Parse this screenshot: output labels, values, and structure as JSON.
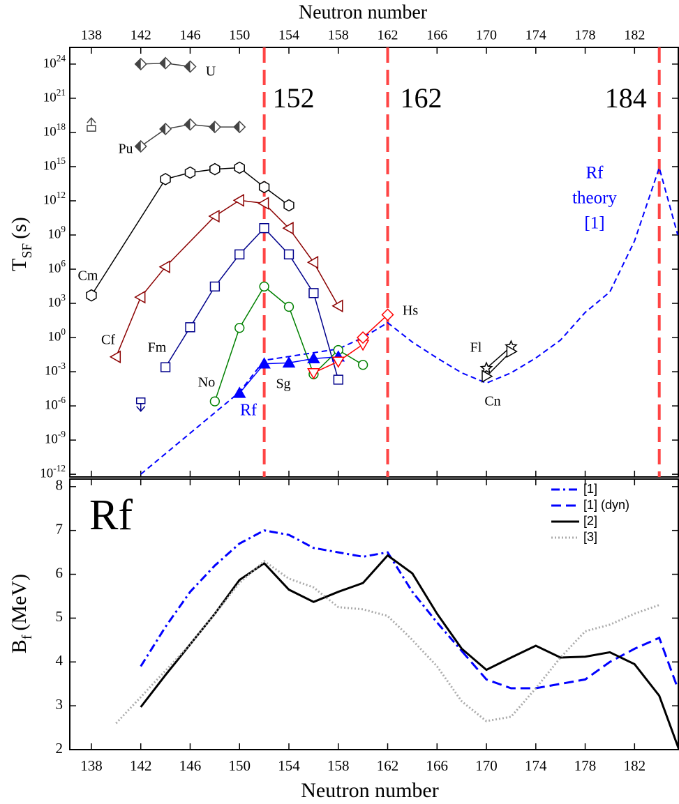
{
  "chart_data": [
    {
      "type": "scatter-line",
      "x_label": "Neutron number",
      "y_label": {
        "main": "T",
        "sub": "SF",
        "unit": "(s)"
      },
      "log_y": true,
      "xlim": [
        136.25,
        185.6
      ],
      "ylim": [
        5.8e-13,
        2.9e+25
      ],
      "xticks": [
        138,
        142,
        146,
        150,
        154,
        158,
        162,
        166,
        170,
        174,
        178,
        182
      ],
      "yticks": [
        {
          "value": 1e-12,
          "label": "10^-12"
        },
        {
          "value": 1e-09,
          "label": "10^-9"
        },
        {
          "value": 1e-06,
          "label": "10^-6"
        },
        {
          "value": 0.001,
          "label": "10^-3"
        },
        {
          "value": 1,
          "label": "10^0"
        },
        {
          "value": 1000,
          "label": "10^3"
        },
        {
          "value": 1000000.0,
          "label": "10^6"
        },
        {
          "value": 1000000000.0,
          "label": "10^9"
        },
        {
          "value": 1000000000000.0,
          "label": "10^12"
        },
        {
          "value": 1000000000000000.0,
          "label": "10^15"
        },
        {
          "value": 1e+18,
          "label": "10^18"
        },
        {
          "value": 1e+21,
          "label": "10^21"
        },
        {
          "value": 1e+24,
          "label": "10^24"
        }
      ],
      "magic_numbers": [
        152,
        162,
        184
      ],
      "magic_color": "#ff4444",
      "series": [
        {
          "name": "U",
          "color": "#444444",
          "marker": "diamond",
          "filled": "half",
          "x": [
            142,
            144,
            146
          ],
          "values": [
            1e+24,
            1.2e+24,
            6e+23
          ]
        },
        {
          "name": "Pu",
          "color": "#444444",
          "marker": "diamond",
          "filled": "half",
          "x": [
            142,
            144,
            146,
            148,
            150
          ],
          "values": [
            6e+16,
            2e+18,
            5e+18,
            3e+18,
            3e+18
          ]
        },
        {
          "name": "Cm",
          "color": "#000000",
          "marker": "hexagon",
          "filled": "open",
          "x": [
            138,
            144,
            146,
            148,
            150,
            152,
            154
          ],
          "values": [
            5000,
            80000000000000.0,
            300000000000000.0,
            600000000000000.0,
            800000000000000.0,
            16000000000000.0,
            400000000000.0
          ]
        },
        {
          "name": "Cf",
          "color": "#8b0000",
          "marker": "triangle-left",
          "filled": "open",
          "x": [
            140,
            142,
            144,
            148,
            150,
            152,
            154,
            156,
            158
          ],
          "values": [
            0.02,
            3500,
            1600000.0,
            45000000000.0,
            1100000000000.0,
            600000000000.0,
            4000000000.0,
            4000000.0,
            600
          ]
        },
        {
          "name": "Fm",
          "color": "#00008b",
          "marker": "square",
          "filled": "open",
          "x": [
            144,
            146,
            148,
            150,
            152,
            154,
            156,
            158
          ],
          "values": [
            0.0025,
            8,
            30000,
            20000000.0,
            4000000000.0,
            20000000.0,
            8000,
            0.0002
          ]
        },
        {
          "name": "No",
          "color": "#008000",
          "marker": "circle",
          "filled": "open",
          "x": [
            148,
            150,
            152,
            154,
            156,
            158,
            160
          ],
          "values": [
            2.5e-06,
            7,
            30000,
            500,
            0.0006,
            0.08,
            0.004
          ]
        },
        {
          "name": "Rf",
          "color": "#0000ff",
          "marker": "triangle-up",
          "filled": "full",
          "x": [
            150,
            152,
            154,
            156,
            158
          ],
          "values": [
            1.3e-05,
            0.005,
            0.006,
            0.014,
            0.02
          ]
        },
        {
          "name": "Sg",
          "color": "#ff0000",
          "marker": "triangle-down",
          "filled": "open",
          "x": [
            156,
            158,
            160
          ],
          "values": [
            0.0008,
            0.008,
            0.25
          ]
        },
        {
          "name": "Hs",
          "color": "#ff0000",
          "marker": "diamond",
          "filled": "open",
          "x": [
            160,
            162
          ],
          "values": [
            1,
            100
          ]
        },
        {
          "name": "Fl",
          "color": "#000000",
          "marker": "star",
          "filled": "open",
          "x": [
            170,
            172
          ],
          "values": [
            0.002,
            0.16
          ]
        },
        {
          "name": "Cn",
          "color": "#000000",
          "marker": "triangle-right",
          "filled": "open",
          "x": [
            170,
            172
          ],
          "values": [
            0.0004,
            0.06
          ]
        }
      ],
      "limits": [
        {
          "x": 138,
          "value": 4e+18,
          "direction": "up",
          "color": "#444444"
        },
        {
          "x": 142,
          "value": 1.6e-06,
          "direction": "down",
          "color": "#00008b"
        }
      ],
      "theory": {
        "label": [
          "Rf",
          "theory",
          "[1]"
        ],
        "color": "#0000ff",
        "x": [
          142,
          150,
          152,
          158,
          160,
          162,
          164,
          166,
          168,
          170,
          172,
          174,
          176,
          178,
          180,
          182,
          184,
          185.5
        ],
        "values": [
          1e-12,
          1.6e-05,
          0.01,
          0.1,
          1,
          20,
          0.4,
          0.016,
          0.0008,
          0.0001,
          0.0008,
          0.016,
          0.6,
          160,
          10000,
          300000000.0,
          800000000000000.0,
          1000000000.0
        ]
      }
    },
    {
      "type": "line",
      "x_label": "Neutron number",
      "y_label": {
        "main": "B",
        "sub": "f",
        "unit": "(MeV)"
      },
      "panel_label": "Rf",
      "legend": "upper right",
      "xlim": [
        136.25,
        185.6
      ],
      "ylim": [
        2,
        8.22
      ],
      "xticks": [
        138,
        142,
        146,
        150,
        154,
        158,
        162,
        166,
        170,
        174,
        178,
        182
      ],
      "yticks": [
        2,
        3,
        4,
        5,
        6,
        7,
        8
      ],
      "series": [
        {
          "name": "[1]",
          "color": "#0000ff",
          "linestyle": "dashdot",
          "x": [
            142,
            144,
            146,
            148,
            150,
            152,
            154,
            156,
            158,
            160,
            162,
            164,
            166,
            168
          ],
          "values": [
            3.9,
            4.8,
            5.6,
            6.2,
            6.7,
            7.0,
            6.9,
            6.6,
            6.5,
            6.4,
            6.5,
            5.6,
            4.9,
            4.25
          ]
        },
        {
          "name": "[1] (dyn)",
          "color": "#0000ff",
          "linestyle": "dashed",
          "x": [
            168,
            170,
            172,
            174,
            176,
            178,
            180,
            182,
            184,
            185.5
          ],
          "values": [
            4.25,
            3.6,
            3.4,
            3.4,
            3.5,
            3.6,
            4.0,
            4.3,
            4.55,
            3.4
          ]
        },
        {
          "name": "[2]",
          "color": "#000000",
          "linestyle": "solid",
          "x": [
            142,
            144,
            146,
            148,
            150,
            152,
            154,
            156,
            158,
            160,
            162,
            164,
            166,
            168,
            170,
            172,
            174,
            176,
            178,
            180,
            182,
            184,
            185.6
          ],
          "values": [
            2.97,
            3.7,
            4.4,
            5.1,
            5.87,
            6.25,
            5.65,
            5.37,
            5.6,
            5.8,
            6.43,
            6.02,
            5.1,
            4.3,
            3.82,
            4.1,
            4.37,
            4.1,
            4.12,
            4.22,
            3.95,
            3.23,
            2.0
          ]
        },
        {
          "name": "[3]",
          "color": "#aaaaaa",
          "linestyle": "dotted",
          "x": [
            140,
            142,
            146,
            150,
            152,
            154,
            156,
            158,
            160,
            162,
            164,
            166,
            168,
            170,
            172,
            174,
            176,
            178,
            180,
            182,
            184
          ],
          "values": [
            2.6,
            3.2,
            4.4,
            5.8,
            6.3,
            5.9,
            5.7,
            5.25,
            5.2,
            5.05,
            4.5,
            3.9,
            3.1,
            2.65,
            2.75,
            3.4,
            4.1,
            4.7,
            4.85,
            5.1,
            5.3
          ]
        }
      ]
    }
  ]
}
